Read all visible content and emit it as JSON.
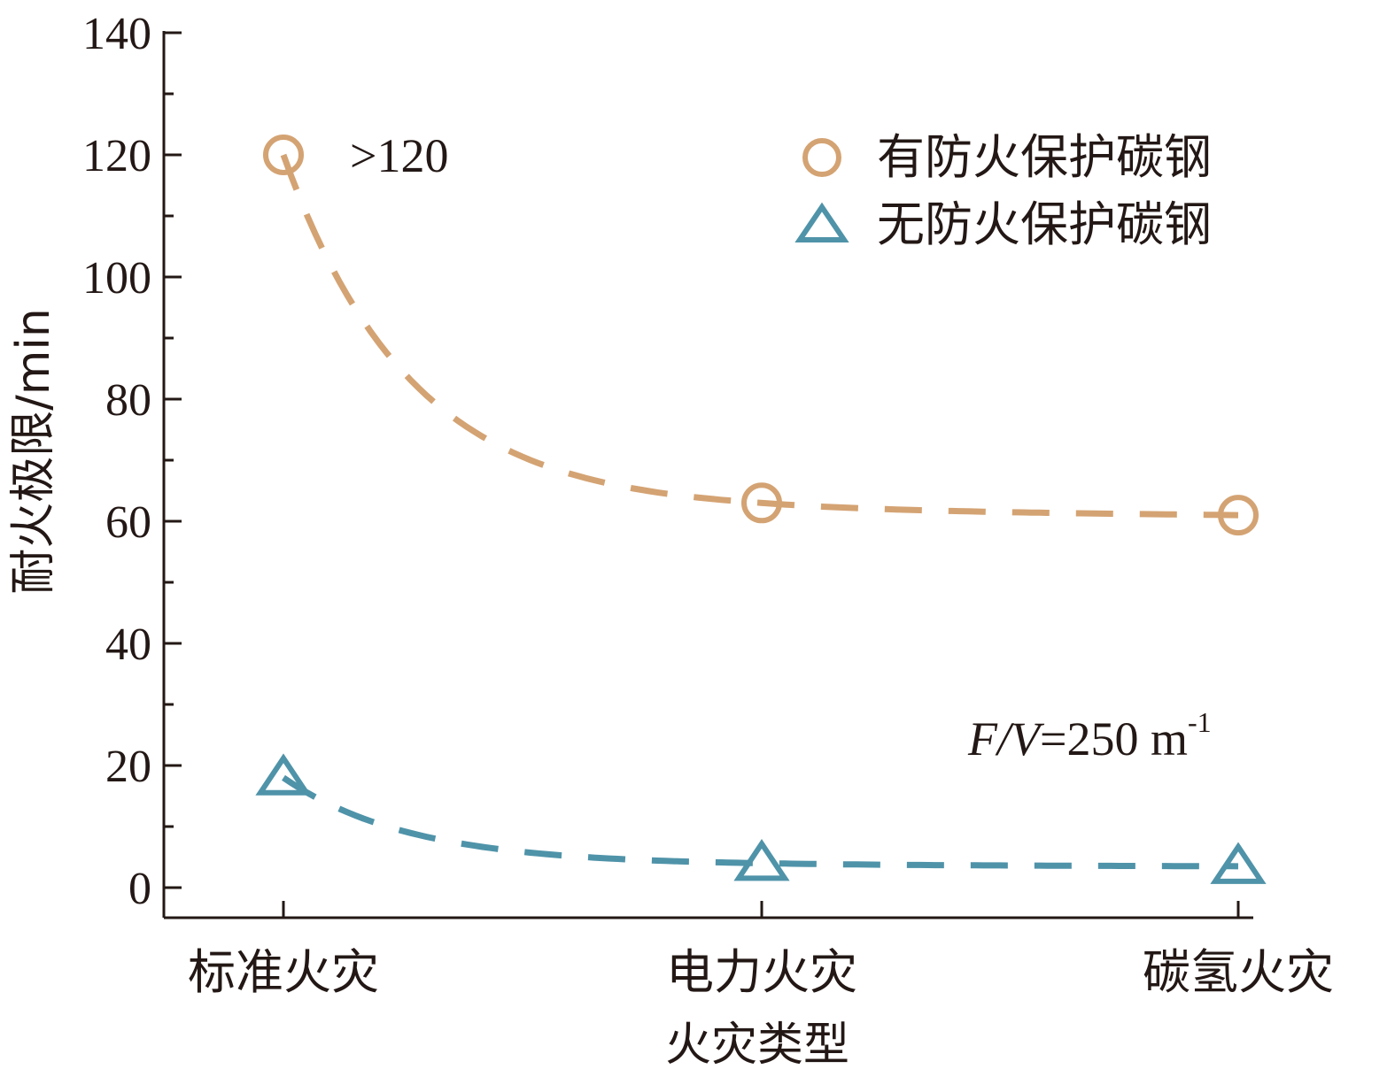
{
  "chart_data": {
    "type": "line",
    "categories": [
      "标准火灾",
      "电力火灾",
      "碳氢火灾"
    ],
    "xlabel": "火灾类型",
    "ylabel": "耐火极限/min",
    "ylim": [
      0,
      140
    ],
    "yticks": [
      0,
      20,
      40,
      60,
      80,
      100,
      120,
      140
    ],
    "grid": false,
    "legend_position": "top-right",
    "series": [
      {
        "name": "有防火保护碳钢",
        "marker": "circle",
        "color": "#D4A373",
        "values": [
          120,
          63,
          61
        ]
      },
      {
        "name": "无防火保护碳钢",
        "marker": "triangle",
        "color": "#4F93A9",
        "values": [
          18,
          4,
          3.5
        ]
      }
    ],
    "annotations": {
      "top_label": ">120",
      "fv_prefix": "F/V",
      "fv_value": "=250 m",
      "fv_exp": "-1"
    }
  }
}
